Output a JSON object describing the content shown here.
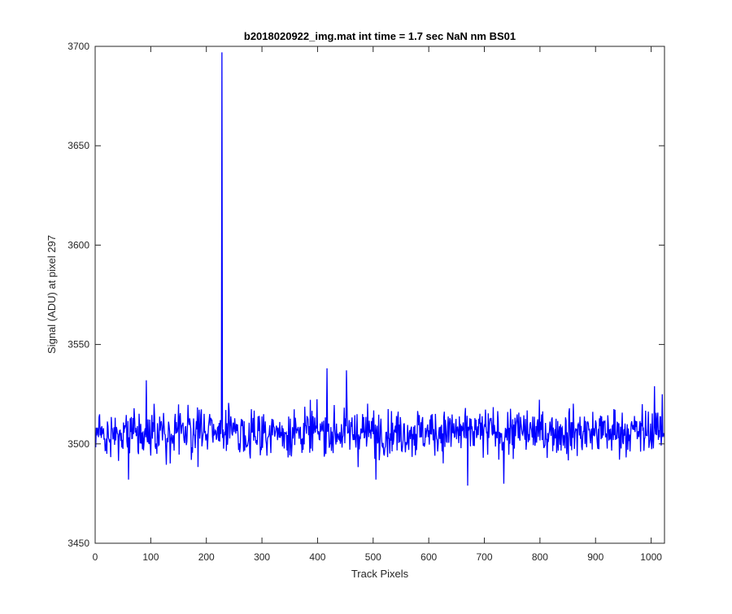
{
  "chart_data": {
    "type": "line",
    "title": "b2018020922_img.mat int time = 1.7 sec  NaN nm BS01",
    "xlabel": "Track Pixels",
    "ylabel": "Signal (ADU) at pixel 297",
    "xlim": [
      0,
      1024
    ],
    "ylim": [
      3450,
      3700
    ],
    "x_ticks": [
      0,
      100,
      200,
      300,
      400,
      500,
      600,
      700,
      800,
      900,
      1000
    ],
    "y_ticks": [
      3450,
      3500,
      3550,
      3600,
      3650,
      3700
    ],
    "grid": false,
    "line_color": "#0000ff",
    "series": [
      {
        "x_start": 1,
        "x_step": 1,
        "baseline": 3506,
        "noise_amplitude": 8,
        "spike": {
          "x": 228,
          "y": 3697
        },
        "notable_points": [
          {
            "x": 92,
            "y": 3532
          },
          {
            "x": 60,
            "y": 3482
          },
          {
            "x": 417,
            "y": 3538
          },
          {
            "x": 452,
            "y": 3537
          },
          {
            "x": 505,
            "y": 3482
          },
          {
            "x": 670,
            "y": 3479
          },
          {
            "x": 735,
            "y": 3480
          },
          {
            "x": 1006,
            "y": 3529
          },
          {
            "x": 1020,
            "y": 3525
          }
        ],
        "n_points": 1024
      }
    ]
  }
}
